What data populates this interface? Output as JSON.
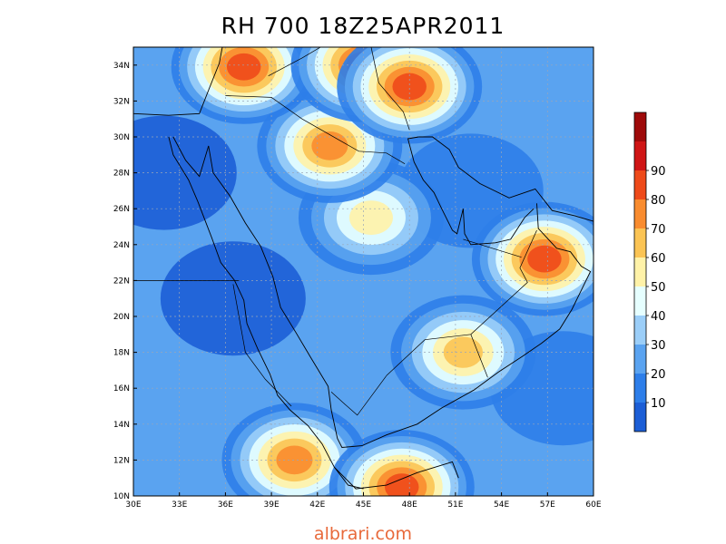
{
  "title": "RH 700 18Z25APR2011",
  "footer": "albrari.com",
  "map": {
    "variable": "Relative humidity at 700 hPa (%)",
    "lon_range": [
      30,
      60
    ],
    "lat_range": [
      10,
      35
    ],
    "lon_ticks": [
      "30E",
      "33E",
      "36E",
      "39E",
      "42E",
      "45E",
      "48E",
      "51E",
      "54E",
      "57E",
      "60E"
    ],
    "lat_ticks": [
      "10N",
      "12N",
      "14N",
      "16N",
      "18N",
      "20N",
      "22N",
      "24N",
      "26N",
      "28N",
      "30N",
      "32N",
      "34N"
    ],
    "gridlines": true,
    "features": [
      {
        "name": "northern-iraq-iran-maximum",
        "lon": 45,
        "lat": 34,
        "rh": 85
      },
      {
        "name": "western-iran-maximum",
        "lon": 48,
        "lat": 32.8,
        "rh": 85
      },
      {
        "name": "lebanon-syria-maximum",
        "lon": 37.2,
        "lat": 33.9,
        "rh": 80
      },
      {
        "name": "oman-mountains-maximum",
        "lon": 56.8,
        "lat": 23.2,
        "rh": 85
      },
      {
        "name": "iraq-moist-tongue",
        "lon": 42.8,
        "lat": 29.5,
        "rh": 70
      },
      {
        "name": "central-arabia-band",
        "lon": 45.5,
        "lat": 25.5,
        "rh": 55
      },
      {
        "name": "rub-al-khali-east",
        "lon": 51.5,
        "lat": 18,
        "rh": 62
      },
      {
        "name": "yemen-highlands",
        "lon": 47.5,
        "lat": 10.5,
        "rh": 80
      },
      {
        "name": "ethiopia-eritrea",
        "lon": 40.5,
        "lat": 12,
        "rh": 75
      },
      {
        "name": "red-sea-dry",
        "lon": 36.5,
        "lat": 21,
        "rh": 8
      },
      {
        "name": "egypt-dry",
        "lon": 32,
        "lat": 28,
        "rh": 7
      },
      {
        "name": "persian-gulf-dry",
        "lon": 52,
        "lat": 27,
        "rh": 18
      },
      {
        "name": "arabian-sea-dry",
        "lon": 58,
        "lat": 16,
        "rh": 10
      }
    ]
  },
  "colorbar": {
    "labels": [
      "10",
      "20",
      "30",
      "40",
      "50",
      "60",
      "70",
      "80",
      "90"
    ],
    "colors": [
      "#1c5ed6",
      "#2d7ee9",
      "#5aa3f0",
      "#9bcef8",
      "#e6ffff",
      "#fff2a8",
      "#fbc454",
      "#f98c2f",
      "#ee4a1a",
      "#cf1515",
      "#9e0a0a"
    ]
  }
}
